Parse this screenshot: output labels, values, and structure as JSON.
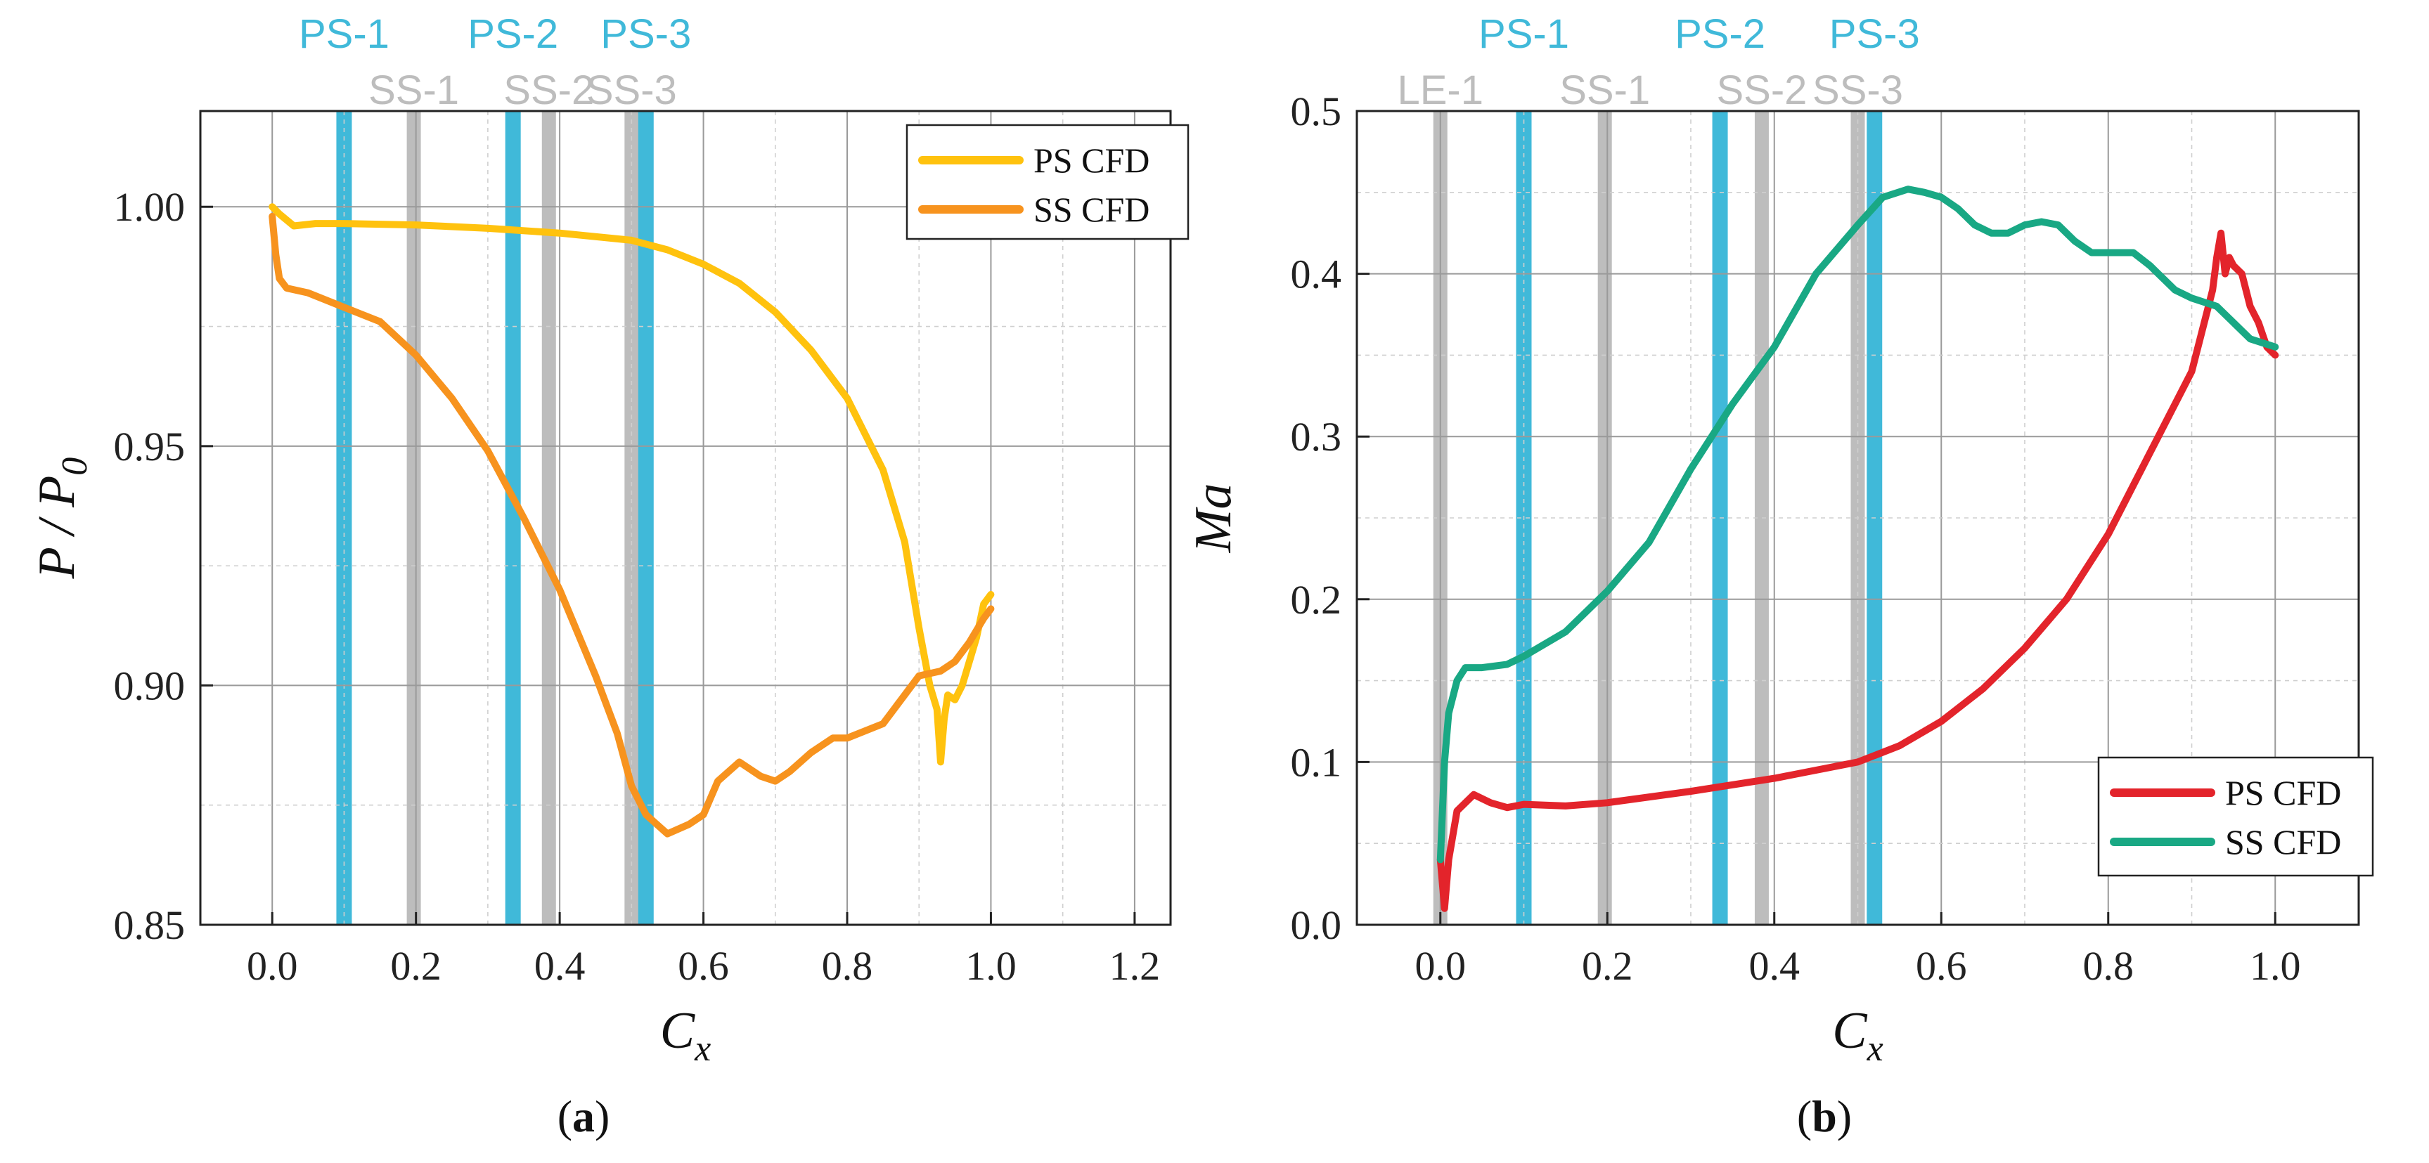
{
  "chart_data": [
    {
      "type": "line",
      "panel_label": "a",
      "xlabel": "C",
      "xlabel_subscript": "x",
      "ylabel": "P / P",
      "ylabel_subscript": "0",
      "xlim": [
        -0.1,
        1.25
      ],
      "ylim": [
        0.85,
        1.02
      ],
      "xticks": [
        0.0,
        0.2,
        0.4,
        0.6,
        0.8,
        1.0,
        1.2
      ],
      "xtick_labels": [
        "0.0",
        "0.2",
        "0.4",
        "0.6",
        "0.8",
        "1.0",
        "1.2"
      ],
      "yticks": [
        0.85,
        0.9,
        0.95,
        1.0
      ],
      "ytick_labels": [
        "0.85",
        "0.90",
        "0.95",
        "1.00"
      ],
      "legend_position": "top-right",
      "bands": [
        {
          "label": "PS-1",
          "x": 0.1,
          "kind": "PS"
        },
        {
          "label": "SS-1",
          "x": 0.197,
          "kind": "SS"
        },
        {
          "label": "PS-2",
          "x": 0.335,
          "kind": "PS"
        },
        {
          "label": "SS-2",
          "x": 0.385,
          "kind": "SS"
        },
        {
          "label": "SS-3",
          "x": 0.5,
          "kind": "SS"
        },
        {
          "label": "PS-3",
          "x": 0.52,
          "kind": "PS"
        }
      ],
      "series": [
        {
          "name": "PS CFD",
          "color": "#FFC20E",
          "x": [
            0.0,
            0.01,
            0.03,
            0.06,
            0.1,
            0.2,
            0.3,
            0.4,
            0.5,
            0.55,
            0.6,
            0.65,
            0.7,
            0.75,
            0.8,
            0.85,
            0.88,
            0.9,
            0.915,
            0.925,
            0.93,
            0.935,
            0.94,
            0.95,
            0.96,
            0.97,
            0.98,
            0.99,
            1.0
          ],
          "values": [
            1.0,
            0.9985,
            0.996,
            0.9965,
            0.9965,
            0.9962,
            0.9955,
            0.9945,
            0.993,
            0.991,
            0.988,
            0.984,
            0.978,
            0.97,
            0.96,
            0.945,
            0.93,
            0.912,
            0.9,
            0.895,
            0.884,
            0.893,
            0.898,
            0.897,
            0.9,
            0.905,
            0.91,
            0.917,
            0.919
          ]
        },
        {
          "name": "SS CFD",
          "color": "#F7931E",
          "x": [
            0.0,
            0.005,
            0.01,
            0.02,
            0.05,
            0.1,
            0.15,
            0.2,
            0.25,
            0.3,
            0.35,
            0.4,
            0.45,
            0.48,
            0.5,
            0.52,
            0.55,
            0.58,
            0.6,
            0.62,
            0.65,
            0.68,
            0.7,
            0.72,
            0.75,
            0.78,
            0.8,
            0.85,
            0.88,
            0.9,
            0.93,
            0.95,
            0.97,
            0.99,
            1.0
          ],
          "values": [
            0.998,
            0.99,
            0.985,
            0.983,
            0.982,
            0.979,
            0.976,
            0.969,
            0.96,
            0.949,
            0.935,
            0.92,
            0.902,
            0.89,
            0.879,
            0.873,
            0.869,
            0.871,
            0.873,
            0.88,
            0.884,
            0.881,
            0.88,
            0.882,
            0.886,
            0.889,
            0.889,
            0.892,
            0.898,
            0.902,
            0.903,
            0.905,
            0.909,
            0.914,
            0.916
          ]
        }
      ]
    },
    {
      "type": "line",
      "panel_label": "b",
      "xlabel": "C",
      "xlabel_subscript": "x",
      "ylabel": "Ma",
      "xlim": [
        -0.1,
        1.1
      ],
      "ylim": [
        0.0,
        0.5
      ],
      "xticks": [
        0.0,
        0.2,
        0.4,
        0.6,
        0.8,
        1.0
      ],
      "xtick_labels": [
        "0.0",
        "0.2",
        "0.4",
        "0.6",
        "0.8",
        "1.0"
      ],
      "yticks": [
        0.0,
        0.1,
        0.2,
        0.3,
        0.4,
        0.5
      ],
      "ytick_labels": [
        "0.0",
        "0.1",
        "0.2",
        "0.3",
        "0.4",
        "0.5"
      ],
      "legend_position": "bottom-right",
      "bands": [
        {
          "label": "LE-1",
          "x": 0.0,
          "kind": "SS"
        },
        {
          "label": "PS-1",
          "x": 0.1,
          "kind": "PS"
        },
        {
          "label": "SS-1",
          "x": 0.197,
          "kind": "SS"
        },
        {
          "label": "PS-2",
          "x": 0.335,
          "kind": "PS"
        },
        {
          "label": "SS-2",
          "x": 0.385,
          "kind": "SS"
        },
        {
          "label": "SS-3",
          "x": 0.5,
          "kind": "SS"
        },
        {
          "label": "PS-3",
          "x": 0.52,
          "kind": "PS"
        }
      ],
      "series": [
        {
          "name": "PS CFD",
          "color": "#E3242B",
          "x": [
            0.0,
            0.005,
            0.01,
            0.02,
            0.04,
            0.06,
            0.08,
            0.1,
            0.15,
            0.2,
            0.3,
            0.4,
            0.5,
            0.55,
            0.6,
            0.65,
            0.7,
            0.75,
            0.8,
            0.85,
            0.88,
            0.9,
            0.915,
            0.925,
            0.93,
            0.935,
            0.94,
            0.945,
            0.95,
            0.96,
            0.97,
            0.98,
            0.99,
            1.0
          ],
          "values": [
            0.04,
            0.01,
            0.04,
            0.07,
            0.08,
            0.075,
            0.072,
            0.074,
            0.073,
            0.075,
            0.082,
            0.09,
            0.1,
            0.11,
            0.125,
            0.145,
            0.17,
            0.2,
            0.24,
            0.29,
            0.32,
            0.34,
            0.37,
            0.39,
            0.41,
            0.425,
            0.4,
            0.41,
            0.405,
            0.4,
            0.38,
            0.37,
            0.355,
            0.35
          ]
        },
        {
          "name": "SS CFD",
          "color": "#19A884",
          "x": [
            0.0,
            0.005,
            0.01,
            0.02,
            0.03,
            0.05,
            0.08,
            0.1,
            0.15,
            0.2,
            0.25,
            0.3,
            0.35,
            0.4,
            0.45,
            0.5,
            0.53,
            0.56,
            0.58,
            0.6,
            0.62,
            0.64,
            0.66,
            0.68,
            0.7,
            0.72,
            0.74,
            0.76,
            0.78,
            0.8,
            0.83,
            0.85,
            0.88,
            0.9,
            0.93,
            0.95,
            0.97,
            1.0
          ],
          "values": [
            0.04,
            0.1,
            0.13,
            0.15,
            0.158,
            0.158,
            0.16,
            0.165,
            0.18,
            0.205,
            0.235,
            0.28,
            0.32,
            0.355,
            0.4,
            0.43,
            0.447,
            0.452,
            0.45,
            0.447,
            0.44,
            0.43,
            0.425,
            0.425,
            0.43,
            0.432,
            0.43,
            0.42,
            0.413,
            0.413,
            0.413,
            0.405,
            0.39,
            0.385,
            0.38,
            0.37,
            0.36,
            0.355
          ]
        }
      ]
    }
  ]
}
